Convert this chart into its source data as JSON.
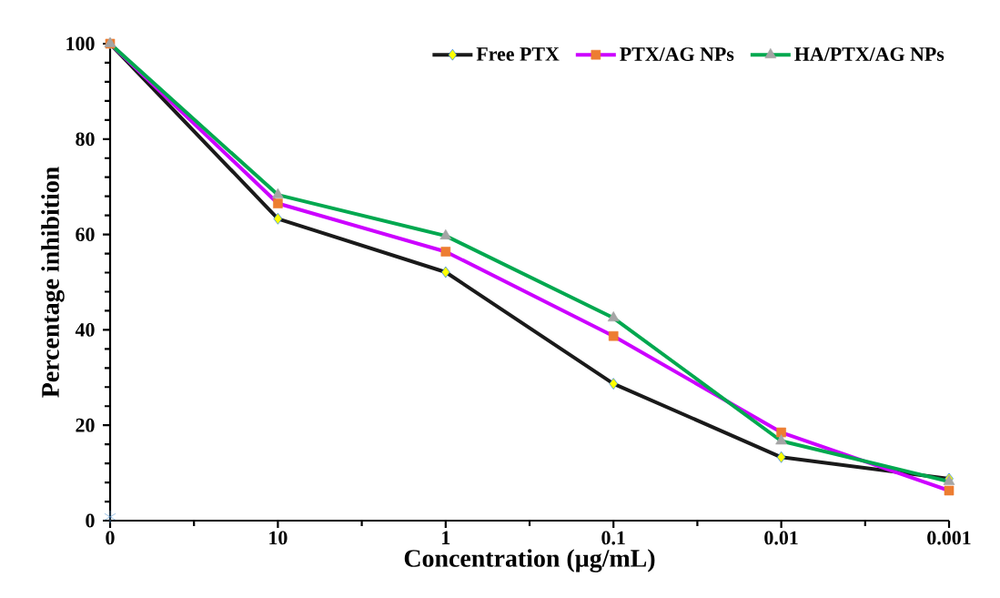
{
  "chart_data": {
    "type": "line",
    "xlabel": "Concentration (µg/mL)",
    "ylabel": "Percentage inhibition",
    "categories": [
      "0",
      "10",
      "1",
      "0.1",
      "0.01",
      "0.001"
    ],
    "series": [
      {
        "name": "Free PTX",
        "color": "#1a1a1a",
        "marker": "diamond",
        "colors": [
          "#ffff00",
          "#ffff00",
          "#ffff00",
          "#ffff00",
          "#ffff00",
          "#ffff00"
        ],
        "values": [
          100,
          63.3,
          52.1,
          28.7,
          13.3,
          8.8
        ]
      },
      {
        "name": "PTX/AG NPs",
        "color": "#cc00ff",
        "marker": "square",
        "colors": [
          "#ed7d31",
          "#ed7d31",
          "#ed7d31",
          "#ed7d31",
          "#ed7d31",
          "#ed7d31"
        ],
        "values": [
          100,
          66.5,
          56.4,
          38.7,
          18.5,
          6.3
        ]
      },
      {
        "name": "HA/PTX/AG NPs",
        "color": "#00a84f",
        "marker": "triangle",
        "colors": [
          "#a5a5a5",
          "#a5a5a5",
          "#a5a5a5",
          "#a5a5a5",
          "#a5a5a5",
          "#a5a5a5"
        ],
        "values": [
          100,
          68.3,
          59.7,
          42.5,
          16.7,
          8.2
        ]
      },
      {
        "type": "scatter",
        "color": "#5b9bd5",
        "marker": "cross",
        "values": [
          0.8,
          null,
          null,
          null,
          null,
          null
        ]
      }
    ],
    "ylim": [
      0,
      100
    ],
    "yticks": [
      0,
      20,
      40,
      60,
      80,
      100
    ],
    "grid": false,
    "legend": "top right",
    "line_style": "solid"
  }
}
